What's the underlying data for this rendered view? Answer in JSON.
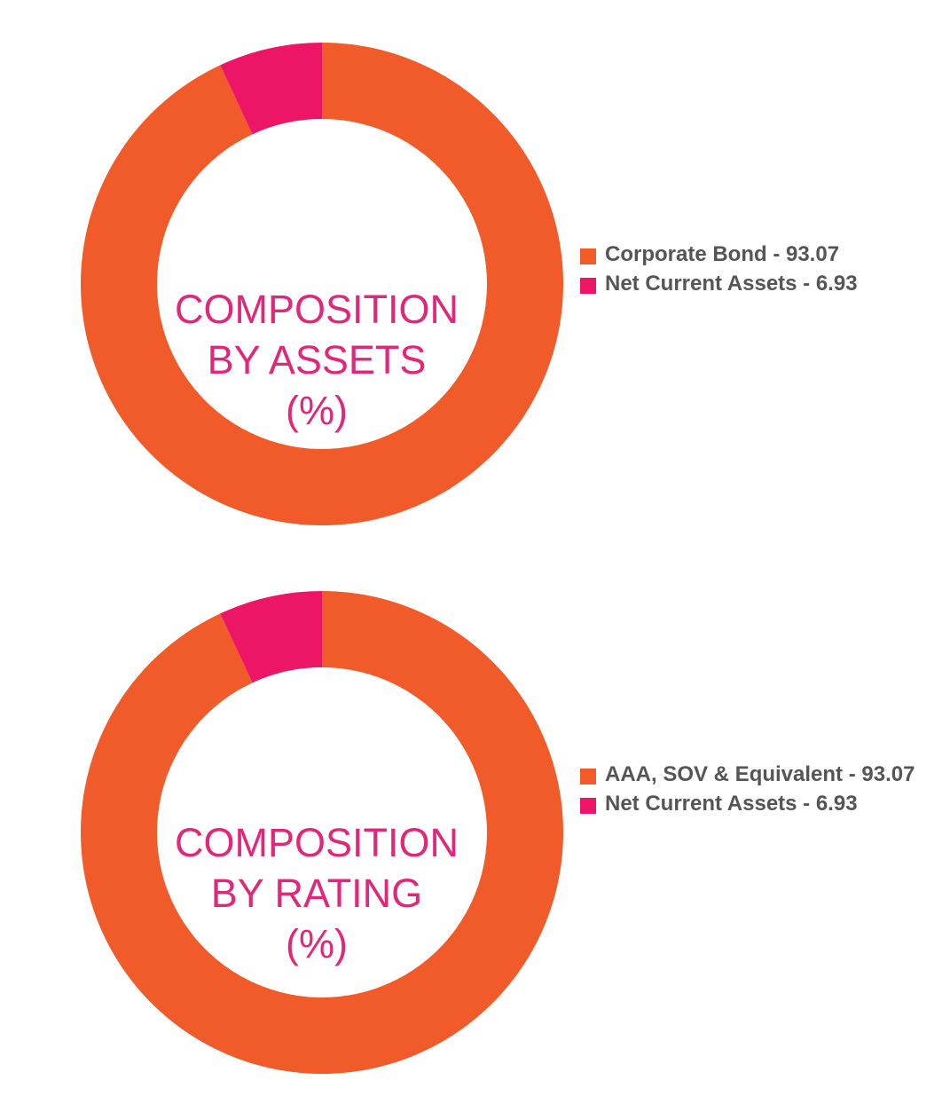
{
  "chart_data": [
    {
      "type": "pie",
      "donut": true,
      "title_lines": [
        "COMPOSITION",
        "BY ASSETS",
        "(%)"
      ],
      "categories": [
        "Corporate Bond",
        "Net Current Assets"
      ],
      "values": [
        93.07,
        6.93
      ],
      "legend_labels": [
        "Corporate Bond - 93.07",
        "Net Current Assets - 6.93"
      ],
      "colors": [
        "#f15a29",
        "#ec1566"
      ],
      "title_color": "#e0277a",
      "legend_position": "right"
    },
    {
      "type": "pie",
      "donut": true,
      "title_lines": [
        "COMPOSITION",
        "BY RATING",
        "(%)"
      ],
      "categories": [
        "AAA, SOV & Equivalent",
        "Net Current Assets"
      ],
      "values": [
        93.07,
        6.93
      ],
      "legend_labels": [
        "AAA, SOV & Equivalent - 93.07",
        "Net Current Assets - 6.93"
      ],
      "colors": [
        "#f15a29",
        "#ec1566"
      ],
      "title_color": "#e0277a",
      "legend_position": "right"
    }
  ]
}
